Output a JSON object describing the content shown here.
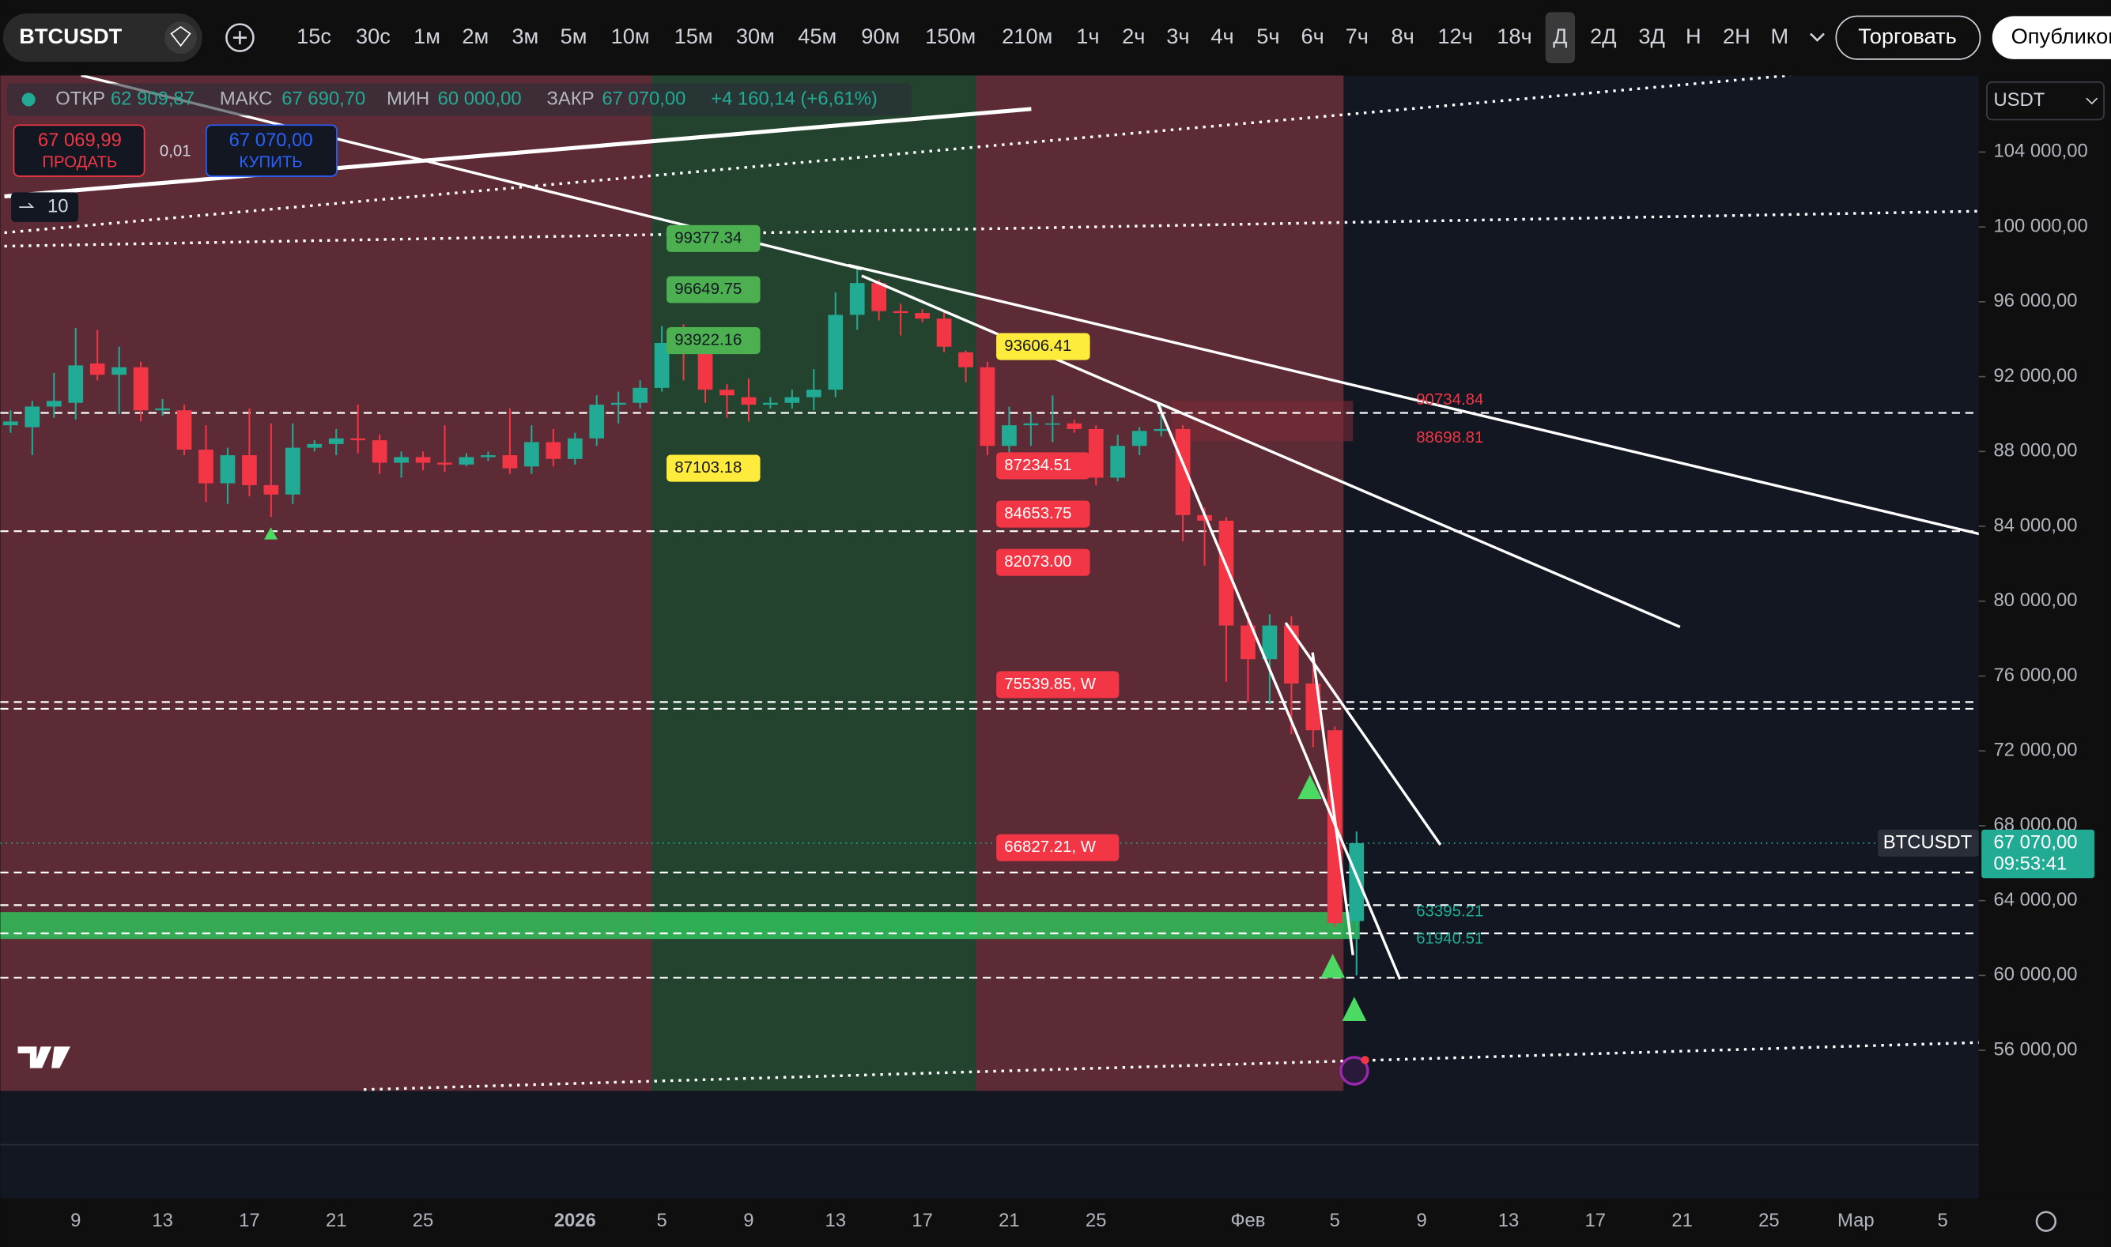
{
  "toolbar": {
    "symbol": "BTCUSDT",
    "intervals": [
      "15с",
      "30с",
      "1м",
      "2м",
      "3м",
      "5м",
      "10м",
      "15м",
      "30м",
      "45м",
      "90м",
      "150м",
      "210м",
      "1ч",
      "2ч",
      "3ч",
      "4ч",
      "5ч",
      "6ч",
      "7ч",
      "8ч",
      "12ч",
      "18ч",
      "Д",
      "2Д",
      "3Д",
      "Н",
      "2Н",
      "М"
    ],
    "active_interval": 23,
    "trade": "Торговать",
    "publish": "Опубликовать"
  },
  "legend": {
    "open_label": "ОТКР",
    "open": "62 909,87",
    "high_label": "МАКС",
    "high": "67 690,70",
    "low_label": "МИН",
    "low": "60 000,00",
    "close_label": "ЗАКР",
    "close": "67 070,00",
    "change": "+4 160,14 (+6,61%)"
  },
  "order": {
    "sell_price": "67 069,99",
    "sell": "ПРОДАТЬ",
    "spread": "0,01",
    "buy_price": "67 070,00",
    "buy": "КУПИТЬ",
    "quantity": "10"
  },
  "chart_data": {
    "type": "candlestick",
    "currency": "USDT",
    "candles": {
      "open": [
        89400,
        89300,
        90400,
        90600,
        92700,
        92100,
        92500,
        90200,
        90200,
        88100,
        86300,
        87800,
        86200,
        85700,
        88200,
        88400,
        88700,
        88600,
        87400,
        87700,
        87400,
        87300,
        87700,
        87800,
        87200,
        88500,
        87600,
        88700,
        90500,
        90600,
        91400,
        93800,
        93700,
        91300,
        90900,
        90500,
        90600,
        90900,
        91300,
        95300,
        97000,
        95500,
        95400,
        95100,
        93300,
        92500,
        88300,
        89400,
        89500,
        89500,
        89200,
        86600,
        88300,
        89100,
        89200,
        84600,
        84300,
        78700,
        76900,
        78700,
        75600,
        73100,
        62909.87
      ],
      "high": [
        90200,
        90700,
        92200,
        94600,
        94500,
        93600,
        92800,
        90800,
        90500,
        89400,
        88200,
        90300,
        89500,
        89500,
        88600,
        89200,
        90500,
        88900,
        88000,
        88000,
        89400,
        87900,
        88000,
        90300,
        89400,
        89200,
        89000,
        91000,
        91200,
        91800,
        94700,
        94800,
        94000,
        91600,
        91900,
        90900,
        91300,
        92400,
        96500,
        97900,
        97200,
        95900,
        95600,
        95500,
        93400,
        92800,
        90400,
        90000,
        91000,
        89700,
        89400,
        88900,
        89300,
        90500,
        89400,
        85000,
        84500,
        79400,
        79300,
        79200,
        76900,
        73300,
        67690.7
      ],
      "low": [
        89000,
        87800,
        89800,
        89700,
        91800,
        90000,
        89600,
        89900,
        87800,
        85300,
        85200,
        85600,
        84500,
        85200,
        88000,
        87800,
        87900,
        86800,
        86600,
        87000,
        86900,
        87200,
        87500,
        86800,
        86800,
        87200,
        87300,
        88300,
        89500,
        90300,
        91200,
        91800,
        90600,
        89800,
        89600,
        90300,
        90300,
        90200,
        90900,
        94500,
        95000,
        94200,
        94900,
        93300,
        91700,
        87800,
        87300,
        88300,
        88500,
        89000,
        86200,
        86400,
        87800,
        88800,
        83200,
        81900,
        75700,
        74600,
        74500,
        72900,
        72200,
        62600,
        60000.0
      ],
      "close": [
        89600,
        90400,
        90700,
        92600,
        92100,
        92500,
        90200,
        90300,
        88100,
        86300,
        87800,
        86200,
        85700,
        88200,
        88400,
        88700,
        88600,
        87400,
        87700,
        87400,
        87300,
        87700,
        87800,
        87100,
        88500,
        87600,
        88700,
        90500,
        90600,
        91400,
        93800,
        93700,
        91300,
        91000,
        90500,
        90600,
        90900,
        91300,
        95300,
        97000,
        95500,
        95400,
        95100,
        93600,
        92500,
        88300,
        89400,
        89500,
        89500,
        89200,
        86600,
        88300,
        89100,
        89200,
        84600,
        84300,
        78700,
        76900,
        78700,
        75600,
        73100,
        62800,
        67070.0
      ]
    },
    "ylim": [
      53900,
      108100
    ],
    "yticks": [
      {
        "value": 104000,
        "label": "104 000,00"
      },
      {
        "value": 100000,
        "label": "100 000,00"
      },
      {
        "value": 96000,
        "label": "96 000,00"
      },
      {
        "value": 92000,
        "label": "92 000,00"
      },
      {
        "value": 88000,
        "label": "88 000,00"
      },
      {
        "value": 84000,
        "label": "84 000,00"
      },
      {
        "value": 80000,
        "label": "80 000,00"
      },
      {
        "value": 76000,
        "label": "76 000,00"
      },
      {
        "value": 72000,
        "label": "72 000,00"
      },
      {
        "value": 68000,
        "label": "68 000,00"
      },
      {
        "value": 64000,
        "label": "64 000,00"
      },
      {
        "value": 60000,
        "label": "60 000,00"
      },
      {
        "value": 56000,
        "label": "56 000,00"
      }
    ],
    "xtick_labels": [
      "9",
      "13",
      "17",
      "21",
      "25",
      "2026",
      "5",
      "9",
      "13",
      "17",
      "21",
      "25",
      "Фев",
      "5",
      "9",
      "13",
      "17",
      "21",
      "25",
      "Мар",
      "5"
    ],
    "levels": [
      90060,
      83740,
      74610,
      74250,
      65500,
      63760,
      62250,
      59880
    ],
    "last_price": {
      "symbol": "BTCUSDT",
      "value": 67070,
      "label": "67 070,00",
      "countdown": "09:53:41"
    },
    "tags_left": [
      {
        "label": "99377.34",
        "value": 99377.34,
        "color": "#4caf50"
      },
      {
        "label": "96649.75",
        "value": 96649.75,
        "color": "#4caf50"
      },
      {
        "label": "93922.16",
        "value": 93922.16,
        "color": "#4caf50"
      },
      {
        "label": "87103.18",
        "value": 87103.18,
        "color": "#ffeb3b"
      }
    ],
    "tags_mid": [
      {
        "label": "93606.41",
        "value": 93606.41,
        "color": "#ffeb3b"
      },
      {
        "label": "87234.51",
        "value": 87234.51,
        "color": "#f23645"
      },
      {
        "label": "84653.75",
        "value": 84653.75,
        "color": "#f23645"
      },
      {
        "label": "82073.00",
        "value": 82073.0,
        "color": "#f23645"
      },
      {
        "label": "75539.85, W",
        "value": 75539.85,
        "color": "#f23645"
      },
      {
        "label": "66827.21, W",
        "value": 66827.21,
        "color": "#f23645"
      }
    ],
    "tags_right": [
      {
        "label": "90734.84",
        "value": 90734.84,
        "color": "#f23645"
      },
      {
        "label": "88698.81",
        "value": 88698.81,
        "color": "#f23645"
      },
      {
        "label": "63395.21",
        "value": 63395.21,
        "color": "#22ab94"
      },
      {
        "label": "61940.51",
        "value": 61940.51,
        "color": "#22ab94"
      }
    ]
  }
}
